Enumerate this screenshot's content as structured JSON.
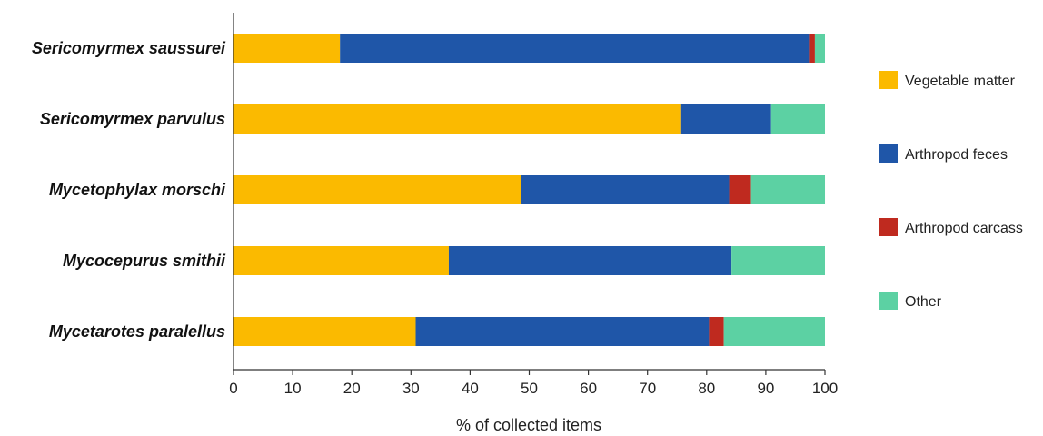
{
  "chart_data": {
    "type": "bar",
    "orientation": "horizontal",
    "stacked": true,
    "categories": [
      "Sericomyrmex saussurei",
      "Sericomyrmex parvulus",
      "Mycetophylax morschi",
      "Mycocepurus smithii",
      "Mycetarotes paralellus"
    ],
    "series": [
      {
        "name": "Vegetable matter",
        "color": "#FBBA00",
        "values": [
          18,
          75.7,
          48.6,
          36.4,
          30.8
        ]
      },
      {
        "name": "Arthropod feces",
        "color": "#1F56A8",
        "values": [
          79.3,
          15.2,
          35.2,
          47.8,
          49.6
        ]
      },
      {
        "name": "Arthropod carcass",
        "color": "#BF2A1F",
        "values": [
          1.0,
          0,
          3.7,
          0,
          2.5
        ]
      },
      {
        "name": "Other",
        "color": "#5CD1A3",
        "values": [
          1.7,
          9.1,
          12.5,
          15.8,
          17.1
        ]
      }
    ],
    "xlabel": "% of collected items",
    "ylabel": "",
    "xlim": [
      0,
      100
    ],
    "xticks": [
      "0",
      "10",
      "20",
      "30",
      "40",
      "50",
      "60",
      "70",
      "80",
      "90",
      "100"
    ],
    "grid": false,
    "legend_position": "right"
  }
}
